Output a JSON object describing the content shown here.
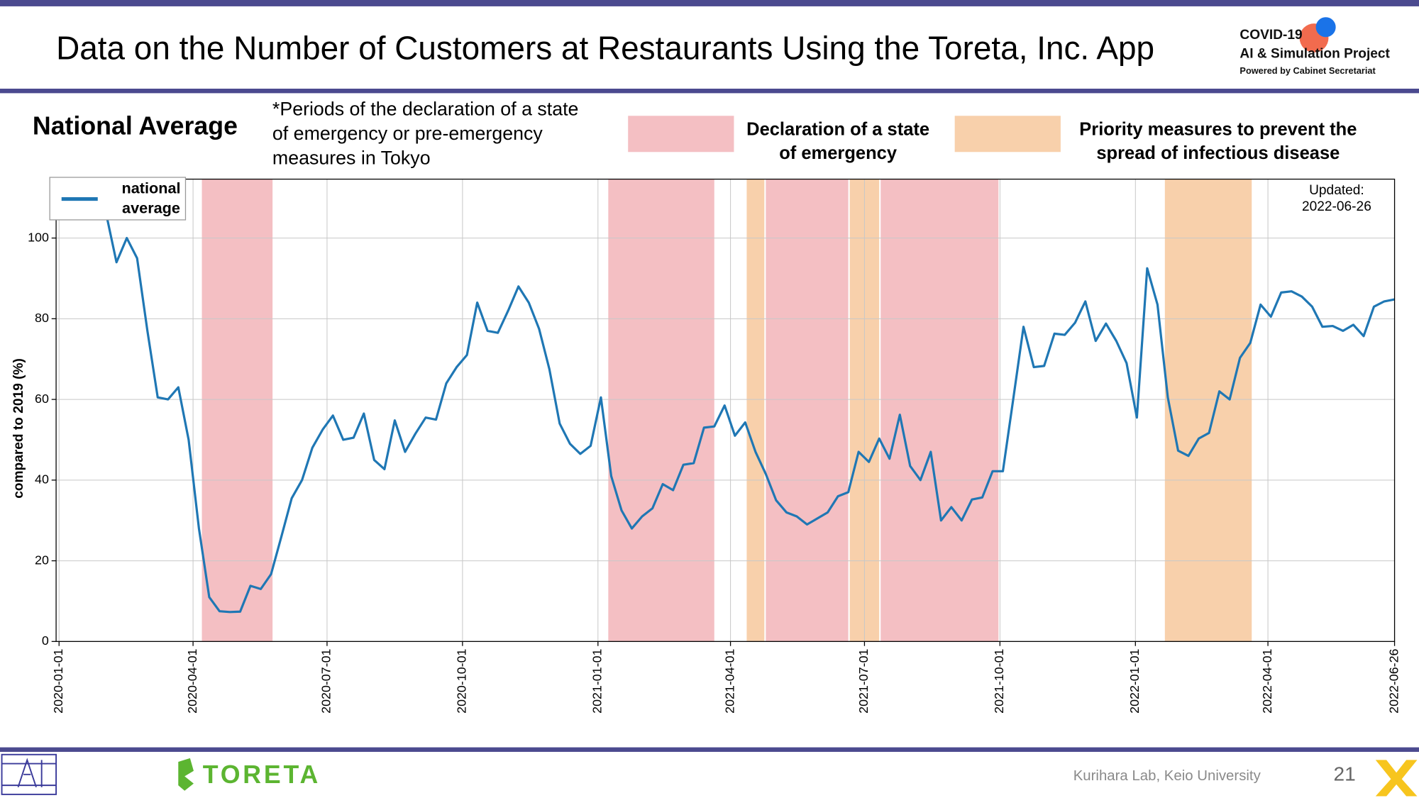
{
  "header": {
    "title": "Data on the Number of Customers at Restaurants Using the Toreta, Inc. App",
    "logo": [
      "COVID-19",
      "AI & Simulation Project",
      "Powered by Cabinet Secretariat"
    ]
  },
  "footer": {
    "brand": "TORETA",
    "credit": "Kurihara Lab, Keio University",
    "page": "21"
  },
  "chart_data": {
    "type": "line",
    "title": "National Average",
    "subtitle": "*Periods of the declaration of a state\nof emergency or pre-emergency\nmeasures in Tokyo",
    "y_label": "compared to 2019 (%)",
    "annotation": "Updated:\n2022-06-26",
    "x": [
      "2020-02-02",
      "2020-02-09",
      "2020-02-16",
      "2020-02-23",
      "2020-03-01",
      "2020-03-08",
      "2020-03-15",
      "2020-03-22",
      "2020-03-29",
      "2020-04-05",
      "2020-04-12",
      "2020-04-19",
      "2020-04-26",
      "2020-05-03",
      "2020-05-10",
      "2020-05-17",
      "2020-05-24",
      "2020-05-31",
      "2020-06-07",
      "2020-06-14",
      "2020-06-21",
      "2020-06-28",
      "2020-07-05",
      "2020-07-12",
      "2020-07-19",
      "2020-07-26",
      "2020-08-02",
      "2020-08-09",
      "2020-08-16",
      "2020-08-23",
      "2020-08-30",
      "2020-09-06",
      "2020-09-13",
      "2020-09-20",
      "2020-09-27",
      "2020-10-04",
      "2020-10-11",
      "2020-10-18",
      "2020-10-25",
      "2020-11-01",
      "2020-11-08",
      "2020-11-15",
      "2020-11-22",
      "2020-11-29",
      "2020-12-06",
      "2020-12-13",
      "2020-12-20",
      "2020-12-27",
      "2021-01-03",
      "2021-01-10",
      "2021-01-17",
      "2021-01-24",
      "2021-01-31",
      "2021-02-07",
      "2021-02-14",
      "2021-02-21",
      "2021-02-28",
      "2021-03-07",
      "2021-03-14",
      "2021-03-21",
      "2021-03-28",
      "2021-04-04",
      "2021-04-11",
      "2021-04-18",
      "2021-04-25",
      "2021-05-02",
      "2021-05-09",
      "2021-05-16",
      "2021-05-23",
      "2021-05-30",
      "2021-06-06",
      "2021-06-13",
      "2021-06-20",
      "2021-06-27",
      "2021-07-04",
      "2021-07-11",
      "2021-07-18",
      "2021-07-25",
      "2021-08-01",
      "2021-08-08",
      "2021-08-15",
      "2021-08-22",
      "2021-08-29",
      "2021-09-05",
      "2021-09-12",
      "2021-09-19",
      "2021-09-26",
      "2021-10-03",
      "2021-10-10",
      "2021-10-17",
      "2021-10-24",
      "2021-10-31",
      "2021-11-07",
      "2021-11-14",
      "2021-11-21",
      "2021-11-28",
      "2021-12-05",
      "2021-12-12",
      "2021-12-19",
      "2021-12-26",
      "2022-01-02",
      "2022-01-09",
      "2022-01-16",
      "2022-01-23",
      "2022-01-30",
      "2022-02-06",
      "2022-02-13",
      "2022-02-20",
      "2022-02-27",
      "2022-03-06",
      "2022-03-13",
      "2022-03-20",
      "2022-03-27",
      "2022-04-03",
      "2022-04-10",
      "2022-04-17",
      "2022-04-24",
      "2022-05-01",
      "2022-05-08",
      "2022-05-15",
      "2022-05-22",
      "2022-05-29",
      "2022-06-05",
      "2022-06-12",
      "2022-06-19",
      "2022-06-26"
    ],
    "series": [
      {
        "name": "national\naverage",
        "color": "#1f77b4",
        "values": [
          106,
          94,
          100,
          95,
          77,
          60.5,
          60,
          63,
          50,
          28,
          11,
          7.5,
          7.3,
          7.4,
          13.8,
          13,
          16.7,
          26,
          35.5,
          40,
          48,
          52.5,
          56,
          50,
          50.5,
          56.5,
          45,
          42.7,
          54.8,
          47,
          51.5,
          55.5,
          55,
          64,
          68,
          71,
          84,
          77,
          76.5,
          82,
          88,
          84,
          77.5,
          67.5,
          54,
          49,
          46.5,
          48.5,
          60.5,
          41,
          32.5,
          28,
          31,
          33,
          39,
          37.5,
          43.8,
          44.2,
          53,
          53.3,
          58.5,
          51,
          54.3,
          47,
          41.5,
          35,
          32,
          31,
          29,
          30.5,
          32,
          36,
          37,
          47,
          44.5,
          50.3,
          45.3,
          56.2,
          43.5,
          40,
          47,
          30,
          33.3,
          30,
          35.2,
          35.7,
          42.2,
          42.2,
          60,
          78,
          68,
          68.3,
          76.3,
          76,
          79,
          84.3,
          74.5,
          78.8,
          74.5,
          69,
          55.5,
          92.5,
          83.5,
          60.5,
          47.3,
          46,
          50.3,
          51.7,
          62,
          60,
          70.3,
          74,
          83.5,
          80.5,
          86.5,
          86.8,
          85.5,
          83,
          78,
          78.2,
          77,
          78.5,
          75.7,
          83,
          84.3,
          84.8
        ]
      }
    ],
    "periods": [
      {
        "name": "Declaration of a state\nof emergency",
        "color": "#f4bfc3",
        "spans": [
          [
            "2020-04-07",
            "2020-05-25"
          ],
          [
            "2021-01-08",
            "2021-03-21"
          ],
          [
            "2021-04-25",
            "2021-06-20"
          ],
          [
            "2021-07-12",
            "2021-09-30"
          ]
        ]
      },
      {
        "name": "Priority measures to prevent the\nspread of infectious disease",
        "color": "#f8d0ab",
        "spans": [
          [
            "2021-04-12",
            "2021-04-24"
          ],
          [
            "2021-06-21",
            "2021-07-11"
          ],
          [
            "2022-01-21",
            "2022-03-21"
          ]
        ]
      }
    ],
    "xlim": [
      "2019-12-30",
      "2022-06-26"
    ],
    "xticks": [
      "2020-01-01",
      "2020-04-01",
      "2020-07-01",
      "2020-10-01",
      "2021-01-01",
      "2021-04-01",
      "2021-07-01",
      "2021-10-01",
      "2022-01-01",
      "2022-04-01",
      "2022-06-26"
    ],
    "ylim": [
      0,
      114.6
    ],
    "yticks": [
      0,
      20,
      40,
      60,
      80,
      100
    ],
    "grid": true
  }
}
